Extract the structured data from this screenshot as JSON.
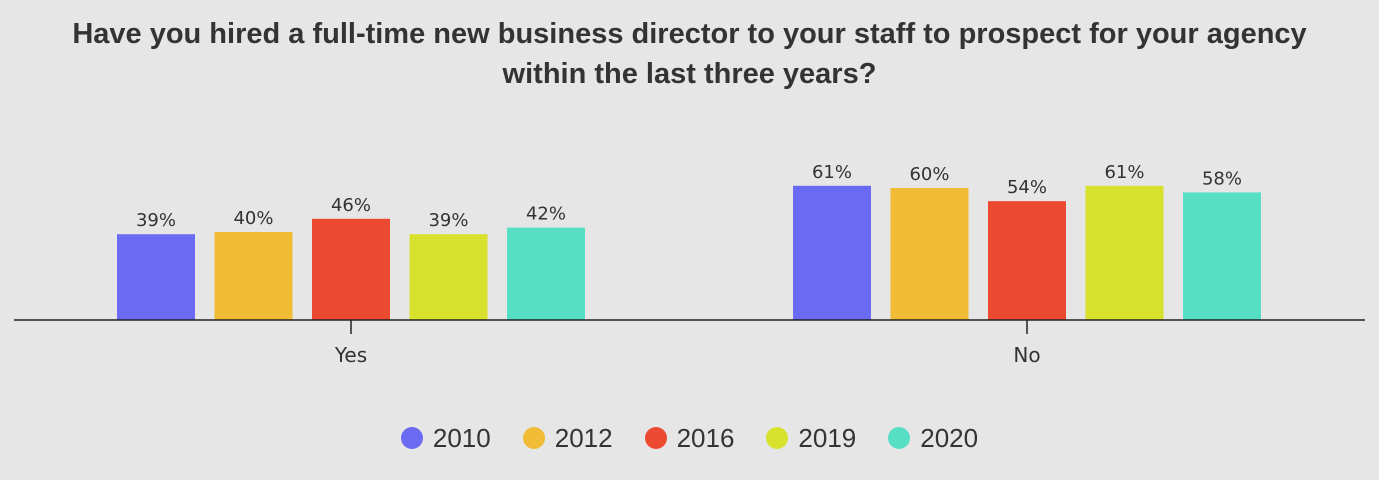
{
  "chart_data": {
    "type": "bar",
    "title": "Have you hired a full-time new business director to your staff to prospect for your agency within the last three years?",
    "categories": [
      "Yes",
      "No"
    ],
    "series": [
      {
        "name": "2010",
        "color": "#6a6af2",
        "values": [
          39,
          61
        ]
      },
      {
        "name": "2012",
        "color": "#f0bb35",
        "values": [
          40,
          60
        ]
      },
      {
        "name": "2016",
        "color": "#ec4a30",
        "values": [
          46,
          54
        ]
      },
      {
        "name": "2019",
        "color": "#d8e22e",
        "values": [
          39,
          61
        ]
      },
      {
        "name": "2020",
        "color": "#57dfc5",
        "values": [
          42,
          58
        ]
      }
    ],
    "value_suffix": "%",
    "legend_position": "bottom",
    "grid": false
  }
}
